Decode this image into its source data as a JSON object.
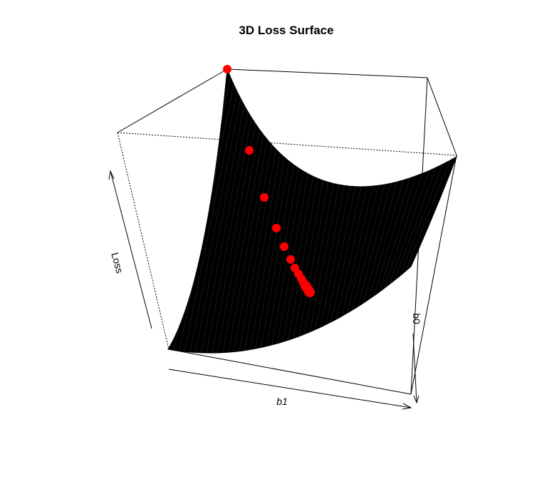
{
  "chart_data": {
    "type": "surface",
    "title": "3D Loss Surface",
    "xlabel": "b1",
    "ylabel": "b0",
    "zlabel": "Loss",
    "surface_color": "#000000",
    "path_color": "#ff0000",
    "box": true
  }
}
